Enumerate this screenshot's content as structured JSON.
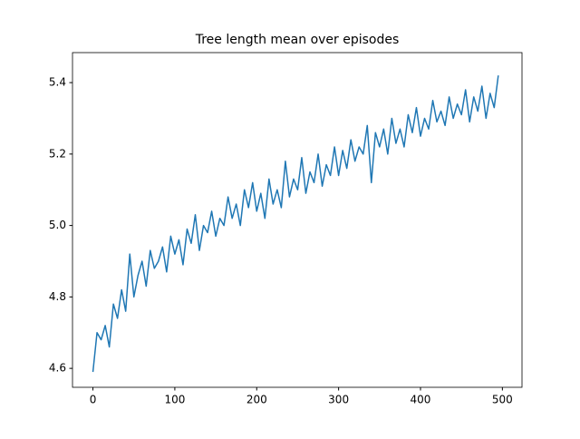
{
  "chart_data": {
    "type": "line",
    "title": "Tree length mean over episodes",
    "x": [
      0,
      5,
      10,
      15,
      20,
      25,
      30,
      35,
      40,
      45,
      50,
      55,
      60,
      65,
      70,
      75,
      80,
      85,
      90,
      95,
      100,
      105,
      110,
      115,
      120,
      125,
      130,
      135,
      140,
      145,
      150,
      155,
      160,
      165,
      170,
      175,
      180,
      185,
      190,
      195,
      200,
      205,
      210,
      215,
      220,
      225,
      230,
      235,
      240,
      245,
      250,
      255,
      260,
      265,
      270,
      275,
      280,
      285,
      290,
      295,
      300,
      305,
      310,
      315,
      320,
      325,
      330,
      335,
      340,
      345,
      350,
      355,
      360,
      365,
      370,
      375,
      380,
      385,
      390,
      395,
      400,
      405,
      410,
      415,
      420,
      425,
      430,
      435,
      440,
      445,
      450,
      455,
      460,
      465,
      470,
      475,
      480,
      485,
      490,
      495
    ],
    "series": [
      {
        "color": "#1f77b4",
        "values": [
          4.59,
          4.7,
          4.68,
          4.72,
          4.66,
          4.78,
          4.74,
          4.82,
          4.76,
          4.92,
          4.8,
          4.86,
          4.9,
          4.83,
          4.93,
          4.88,
          4.9,
          4.94,
          4.87,
          4.97,
          4.92,
          4.96,
          4.89,
          4.99,
          4.95,
          5.03,
          4.93,
          5.0,
          4.98,
          5.04,
          4.97,
          5.02,
          5.0,
          5.08,
          5.02,
          5.06,
          5.0,
          5.1,
          5.05,
          5.12,
          5.04,
          5.09,
          5.02,
          5.13,
          5.06,
          5.1,
          5.05,
          5.18,
          5.08,
          5.13,
          5.1,
          5.19,
          5.09,
          5.15,
          5.12,
          5.2,
          5.11,
          5.17,
          5.14,
          5.22,
          5.14,
          5.21,
          5.16,
          5.24,
          5.18,
          5.22,
          5.2,
          5.28,
          5.12,
          5.26,
          5.22,
          5.27,
          5.2,
          5.3,
          5.23,
          5.27,
          5.22,
          5.31,
          5.26,
          5.33,
          5.25,
          5.3,
          5.27,
          5.35,
          5.29,
          5.32,
          5.28,
          5.36,
          5.3,
          5.34,
          5.31,
          5.38,
          5.29,
          5.36,
          5.32,
          5.39,
          5.3,
          5.37,
          5.33,
          5.42
        ]
      }
    ],
    "xlim": [
      -24.95,
      523.95
    ],
    "xticks": [
      0,
      100,
      200,
      300,
      400,
      500
    ],
    "ylim": [
      4.547,
      5.484
    ],
    "yticks": [
      4.6,
      4.8,
      {
        "value": 5,
        "label": "5.0"
      },
      5.2,
      5.4
    ],
    "grid": false
  }
}
